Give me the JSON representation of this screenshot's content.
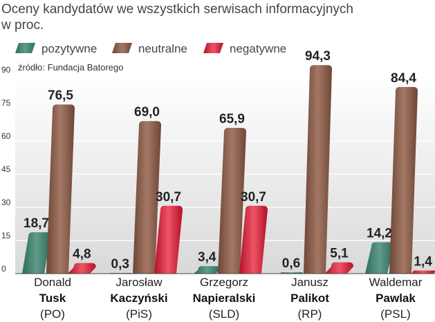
{
  "chart_data": {
    "type": "bar",
    "title_lines": [
      "Oceny kandydatów we wszystkich serwisach informacyjnych",
      "w proc."
    ],
    "source": "źródło: Fundacja Batorego",
    "ylim": [
      0,
      90
    ],
    "yticks": [
      "0",
      "15",
      "30",
      "45",
      "60",
      "75",
      "90"
    ],
    "grid": true,
    "legend_position": "top",
    "categories": [
      {
        "first": "Donald",
        "last": "Tusk",
        "party": "(PO)"
      },
      {
        "first": "Jarosław",
        "last": "Kaczyński",
        "party": "(PiS)"
      },
      {
        "first": "Grzegorz",
        "last": "Napieralski",
        "party": "(SLD)"
      },
      {
        "first": "Janusz",
        "last": "Palikot",
        "party": "(RP)"
      },
      {
        "first": "Waldemar",
        "last": "Pawlak",
        "party": "(PSL)"
      }
    ],
    "series": [
      {
        "name": "pozytywne",
        "color": "#3f7f6e",
        "values": [
          18.7,
          0.3,
          3.4,
          0.6,
          14.2
        ],
        "labels": [
          "18,7",
          "0,3",
          "3,4",
          "0,6",
          "14,2"
        ]
      },
      {
        "name": "neutralne",
        "color": "#8b5f4e",
        "values": [
          76.5,
          69.0,
          65.9,
          94.3,
          84.4
        ],
        "labels": [
          "76,5",
          "69,0",
          "65,9",
          "94,3",
          "84,4"
        ]
      },
      {
        "name": "negatywne",
        "color": "#d9263b",
        "values": [
          4.8,
          30.7,
          30.7,
          5.1,
          1.4
        ],
        "labels": [
          "4,8",
          "30,7",
          "30,7",
          "5,1",
          "1,4"
        ]
      }
    ]
  }
}
